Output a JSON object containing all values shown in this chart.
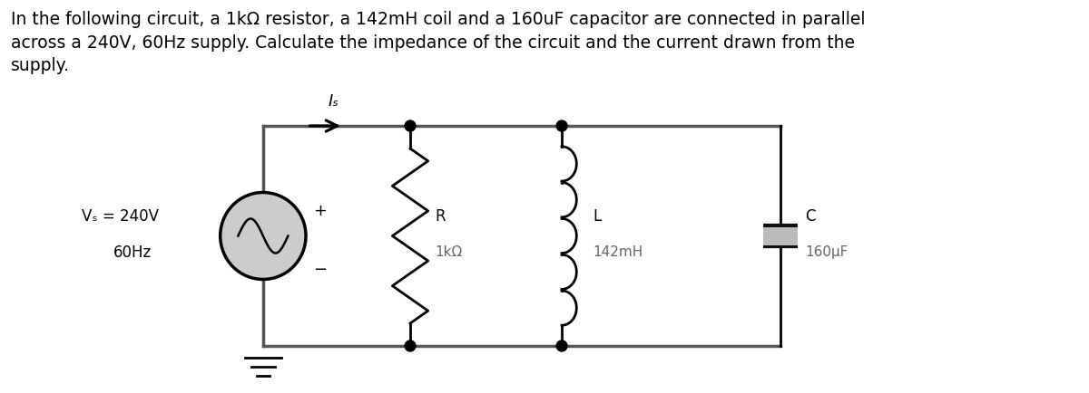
{
  "title_text": "In the following circuit, a 1kΩ resistor, a 142mH coil and a 160uF capacitor are connected in parallel\nacross a 240V, 60Hz supply. Calculate the impedance of the circuit and the current drawn from the\nsupply.",
  "title_fontsize": 13.5,
  "bg_color": "#ffffff",
  "text_color": "#000000",
  "line_color": "#000000",
  "gray_color": "#aaaaaa",
  "dark_color": "#222222",
  "line_width": 2.0,
  "rail_color": "#555555",
  "vs_label_line1": "Vₛ = 240V",
  "vs_label_line2": "60Hz",
  "r_label": "R",
  "r_val": "1kΩ",
  "l_label": "L",
  "l_val": "142mH",
  "c_label": "C",
  "c_val": "160μF",
  "is_label": "Iₛ",
  "plus_label": "+",
  "minus_label": "−"
}
